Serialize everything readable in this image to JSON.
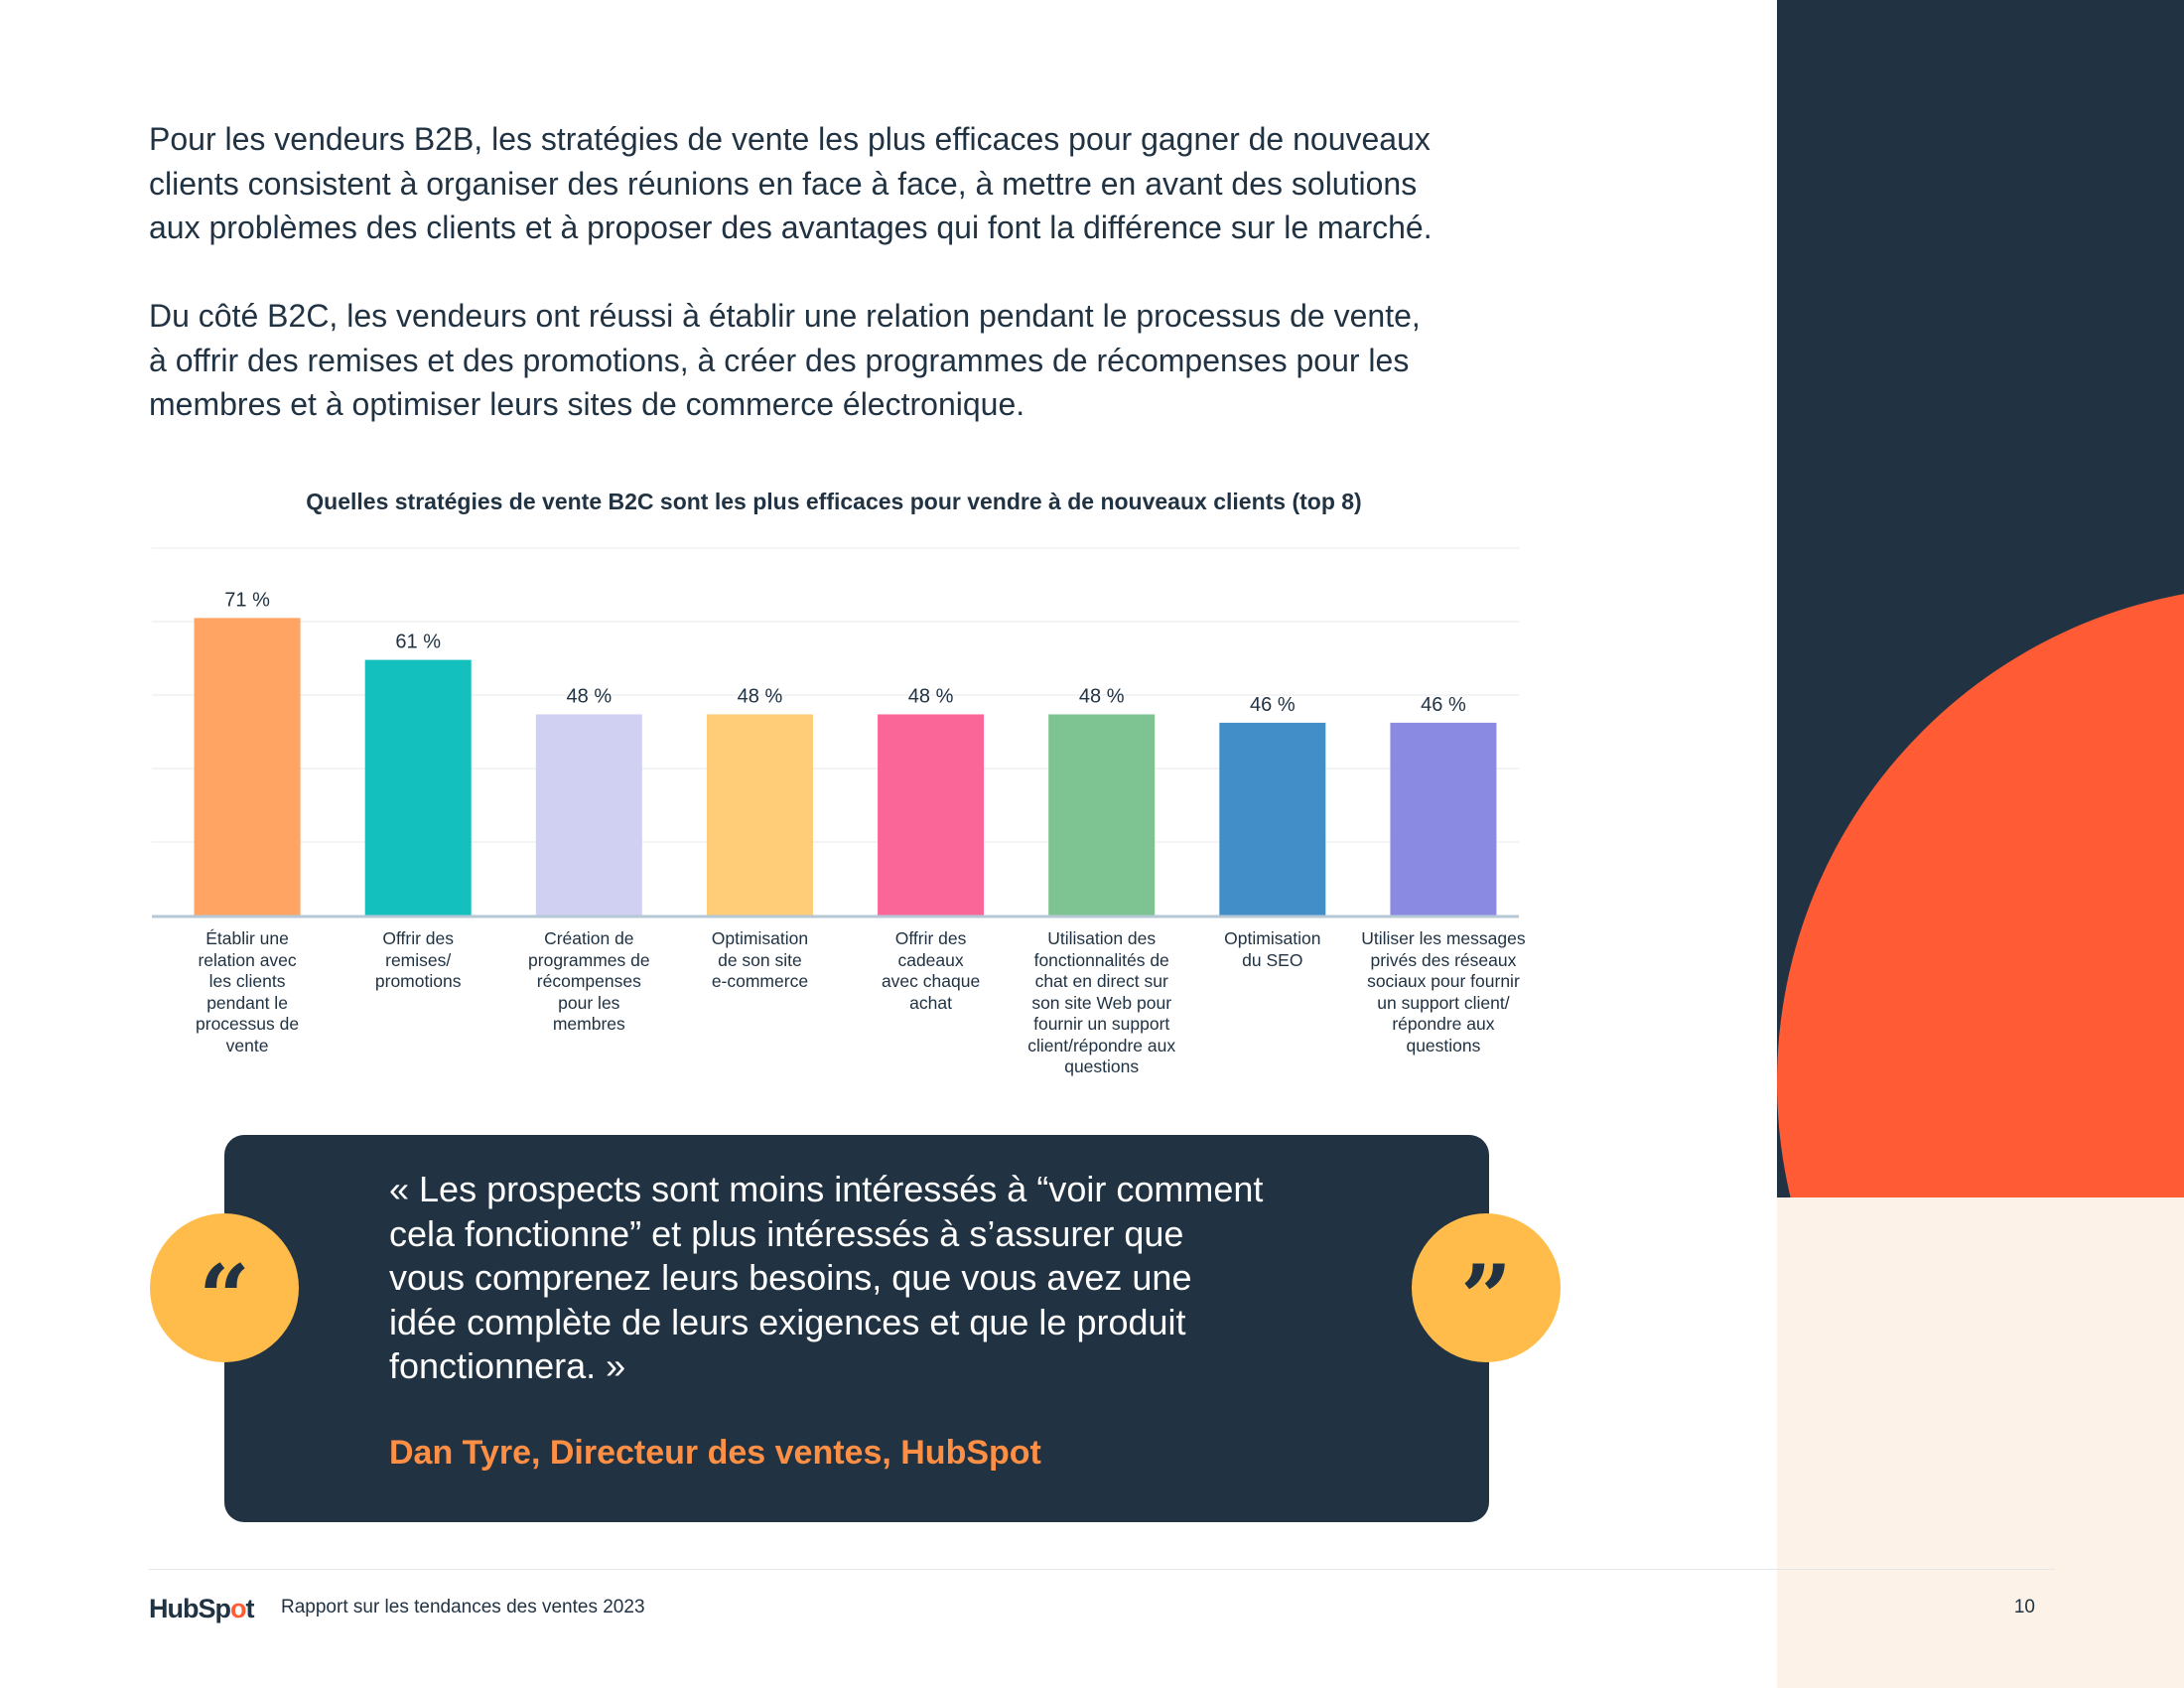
{
  "intro": {
    "p1": "Pour les vendeurs B2B, les stratégies de vente les plus efficaces pour gagner de nouveaux\nclients consistent à organiser des réunions en face à face, à mettre en avant des solutions\naux problèmes des clients et à proposer des avantages qui font la différence sur le marché.",
    "p2": "Du côté B2C, les vendeurs ont réussi à établir une relation pendant le processus de vente,\nà offrir des remises et des promotions, à créer des programmes de récompenses pour les\nmembres et à optimiser leurs sites de commerce électronique."
  },
  "chart_data": {
    "type": "bar",
    "title": "Quelles stratégies de vente B2C sont les plus efficaces pour vendre à de nouveaux clients (top 8)",
    "categories": [
      "Établir une relation avec les clients pendant le processus de vente",
      "Offrir des remises/ promotions",
      "Création de programmes de récompenses pour les membres",
      "Optimisation de son site e-commerce",
      "Offrir des cadeaux avec chaque achat",
      "Utilisation des fonctionnalités de chat en direct sur son site Web pour fournir un support client/répondre aux questions",
      "Optimisation du SEO",
      "Utiliser les messages privés des réseaux sociaux pour fournir un support client/ répondre aux questions"
    ],
    "category_lines": [
      [
        "Établir une",
        "relation avec",
        "les clients",
        "pendant le",
        "processus de",
        "vente"
      ],
      [
        "Offrir des",
        "remises/",
        "promotions"
      ],
      [
        "Création de",
        "programmes de",
        "récompenses",
        "pour les",
        "membres"
      ],
      [
        "Optimisation",
        "de son site",
        "e-commerce"
      ],
      [
        "Offrir des",
        "cadeaux",
        "avec chaque",
        "achat"
      ],
      [
        "Utilisation des",
        "fonctionnalités de",
        "chat en direct sur",
        "son site Web pour",
        "fournir un support",
        "client/répondre aux",
        "questions"
      ],
      [
        "Optimisation",
        "du SEO"
      ],
      [
        "Utiliser les messages",
        "privés des réseaux",
        "sociaux pour fournir",
        "un support client/",
        "répondre aux",
        "questions"
      ]
    ],
    "values": [
      71,
      61,
      48,
      48,
      48,
      48,
      46,
      46
    ],
    "value_labels": [
      "71 %",
      "61 %",
      "48 %",
      "48 %",
      "48 %",
      "48 %",
      "46 %",
      "46 %"
    ],
    "colors": [
      "#ffa463",
      "#13c0bd",
      "#cfd0f2",
      "#ffcc78",
      "#fa6698",
      "#7ec492",
      "#418ec8",
      "#8a8ae2"
    ],
    "ylim": [
      0,
      100
    ],
    "grid": true,
    "legend": "none"
  },
  "quote": {
    "text": "« Les prospects sont moins intéressés à “voir comment\ncela fonctionne” et plus intéressés à s’assurer que\nvous comprenez leurs besoins, que vous avez une\nidée complète de leurs exigences et que le produit\nfonctionnera. »",
    "author": "Dan Tyre, Directeur des ventes, HubSpot",
    "open_mark": "“",
    "close_mark": "”"
  },
  "footer": {
    "logo": "HubSpot",
    "report": "Rapport sur les tendances des ventes 2023",
    "page": "10"
  }
}
